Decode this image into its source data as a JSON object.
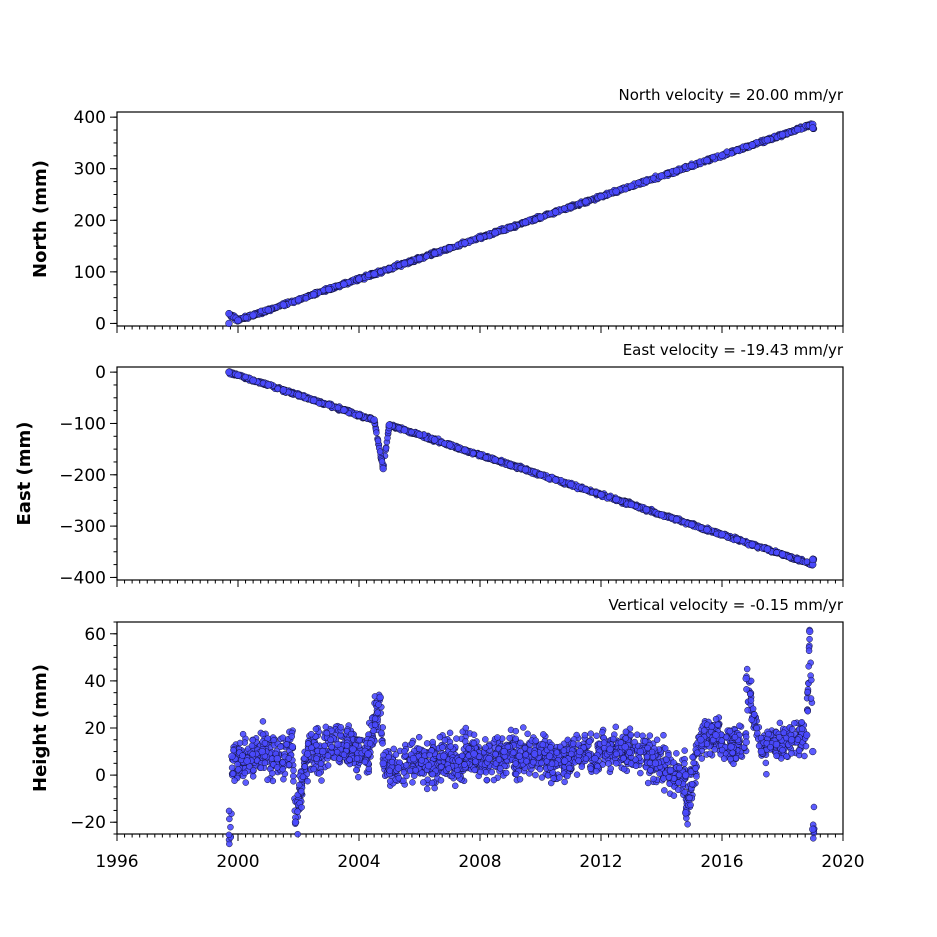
{
  "chart_data": [
    {
      "type": "scatter",
      "title": "North velocity = 20.00 mm/yr",
      "xlabel": "",
      "ylabel": "North (mm)",
      "xlim": [
        1996,
        2020
      ],
      "ylim": [
        -5,
        410
      ],
      "yticks": [
        0,
        100,
        200,
        300,
        400
      ],
      "ytick_labels": [
        "0",
        "100",
        "200",
        "300",
        "400"
      ],
      "xticks": [
        1996,
        2000,
        2004,
        2008,
        2012,
        2016,
        2020
      ],
      "xtick_labels": [],
      "grid": false,
      "color": "#4a4aff",
      "series": [
        {
          "x": [
            1999.7,
            2000.0,
            2000.5,
            2001.0,
            2001.5,
            2002.0,
            2002.5,
            2003.0,
            2003.5,
            2004.0,
            2004.5,
            2005.0,
            2005.5,
            2006.0,
            2006.5,
            2007.0,
            2007.5,
            2008.0,
            2008.5,
            2009.0,
            2009.5,
            2010.0,
            2010.5,
            2011.0,
            2011.5,
            2012.0,
            2012.5,
            2013.0,
            2013.5,
            2014.0,
            2014.5,
            2015.0,
            2015.5,
            2016.0,
            2016.5,
            2017.0,
            2017.5,
            2018.0,
            2018.5,
            2019.0,
            1999.7,
            2019.0
          ],
          "y": [
            0,
            6,
            16,
            26,
            36,
            46,
            56,
            66,
            76,
            86,
            96,
            106,
            116,
            126,
            136,
            146,
            156,
            166,
            176,
            186,
            196,
            206,
            216,
            226,
            236,
            246,
            256,
            266,
            276,
            286,
            296,
            306,
            316,
            326,
            336,
            346,
            356,
            366,
            376,
            386,
            19,
            379
          ]
        }
      ]
    },
    {
      "type": "scatter",
      "title": "East velocity = -19.43 mm/yr",
      "xlabel": "",
      "ylabel": "East (mm)",
      "xlim": [
        1996,
        2020
      ],
      "ylim": [
        -405,
        10
      ],
      "yticks": [
        0,
        -100,
        -200,
        -300,
        -400
      ],
      "ytick_labels": [
        "0",
        "−100",
        "−200",
        "−300",
        "−400"
      ],
      "xticks": [
        1996,
        2000,
        2004,
        2008,
        2012,
        2016,
        2020
      ],
      "xtick_labels": [],
      "grid": false,
      "color": "#4a4aff",
      "series": [
        {
          "x": [
            1999.7,
            2000.0,
            2000.5,
            2001.0,
            2001.5,
            2002.0,
            2002.5,
            2003.0,
            2003.5,
            2004.0,
            2004.5,
            2005.0,
            2005.5,
            2006.0,
            2006.5,
            2007.0,
            2007.5,
            2008.0,
            2008.5,
            2009.0,
            2009.5,
            2010.0,
            2010.5,
            2011.0,
            2011.5,
            2012.0,
            2012.5,
            2013.0,
            2013.5,
            2014.0,
            2014.5,
            2015.0,
            2015.5,
            2016.0,
            2016.5,
            2017.0,
            2017.5,
            2018.0,
            2018.5,
            2019.0,
            2004.8,
            2019.0
          ],
          "y": [
            0,
            -6,
            -16,
            -25,
            -35,
            -45,
            -55,
            -64,
            -74,
            -84,
            -93,
            -103,
            -113,
            -122,
            -132,
            -142,
            -152,
            -161,
            -171,
            -181,
            -190,
            -200,
            -210,
            -219,
            -229,
            -239,
            -248,
            -258,
            -268,
            -278,
            -287,
            -297,
            -307,
            -316,
            -326,
            -336,
            -345,
            -355,
            -365,
            -375,
            -188,
            -365
          ]
        }
      ]
    },
    {
      "type": "scatter",
      "title": "Vertical velocity = -0.15 mm/yr",
      "xlabel": "",
      "ylabel": "Height (mm)",
      "xlim": [
        1996,
        2020
      ],
      "ylim": [
        -25,
        65
      ],
      "yticks": [
        -20,
        0,
        20,
        40,
        60
      ],
      "ytick_labels": [
        "−20",
        "0",
        "20",
        "40",
        "60"
      ],
      "xticks": [
        1996,
        2000,
        2004,
        2008,
        2012,
        2016,
        2020
      ],
      "xtick_labels": [
        "1996",
        "2000",
        "2004",
        "2008",
        "2012",
        "2016",
        "2020"
      ],
      "grid": false,
      "color": "#4a4aff",
      "series": [
        {
          "x": [
            1999.8,
            2000.3,
            2000.8,
            2001.3,
            2001.8,
            2002.3,
            2002.8,
            2003.3,
            2003.8,
            2004.3,
            2004.8,
            2005.3,
            2005.8,
            2006.3,
            2006.8,
            2007.3,
            2007.8,
            2008.3,
            2008.8,
            2009.3,
            2009.8,
            2010.3,
            2010.8,
            2011.3,
            2011.8,
            2012.3,
            2012.8,
            2013.3,
            2013.8,
            2014.3,
            2014.8,
            2015.3,
            2015.8,
            2016.3,
            2016.8,
            2017.3,
            2017.8,
            2018.3,
            2018.8,
            2019.0,
            2001.9,
            2004.7,
            2016.8,
            2018.9,
            2019.0,
            2014.8
          ],
          "y": [
            8,
            6,
            10,
            7,
            12,
            9,
            10,
            13,
            11,
            9,
            5,
            3,
            7,
            4,
            8,
            6,
            9,
            7,
            10,
            8,
            9,
            8,
            6,
            10,
            7,
            11,
            12,
            10,
            5,
            2,
            0,
            15,
            17,
            12,
            14,
            10,
            13,
            15,
            17,
            10,
            -20,
            33,
            41,
            61,
            -23,
            -16
          ]
        }
      ]
    }
  ]
}
